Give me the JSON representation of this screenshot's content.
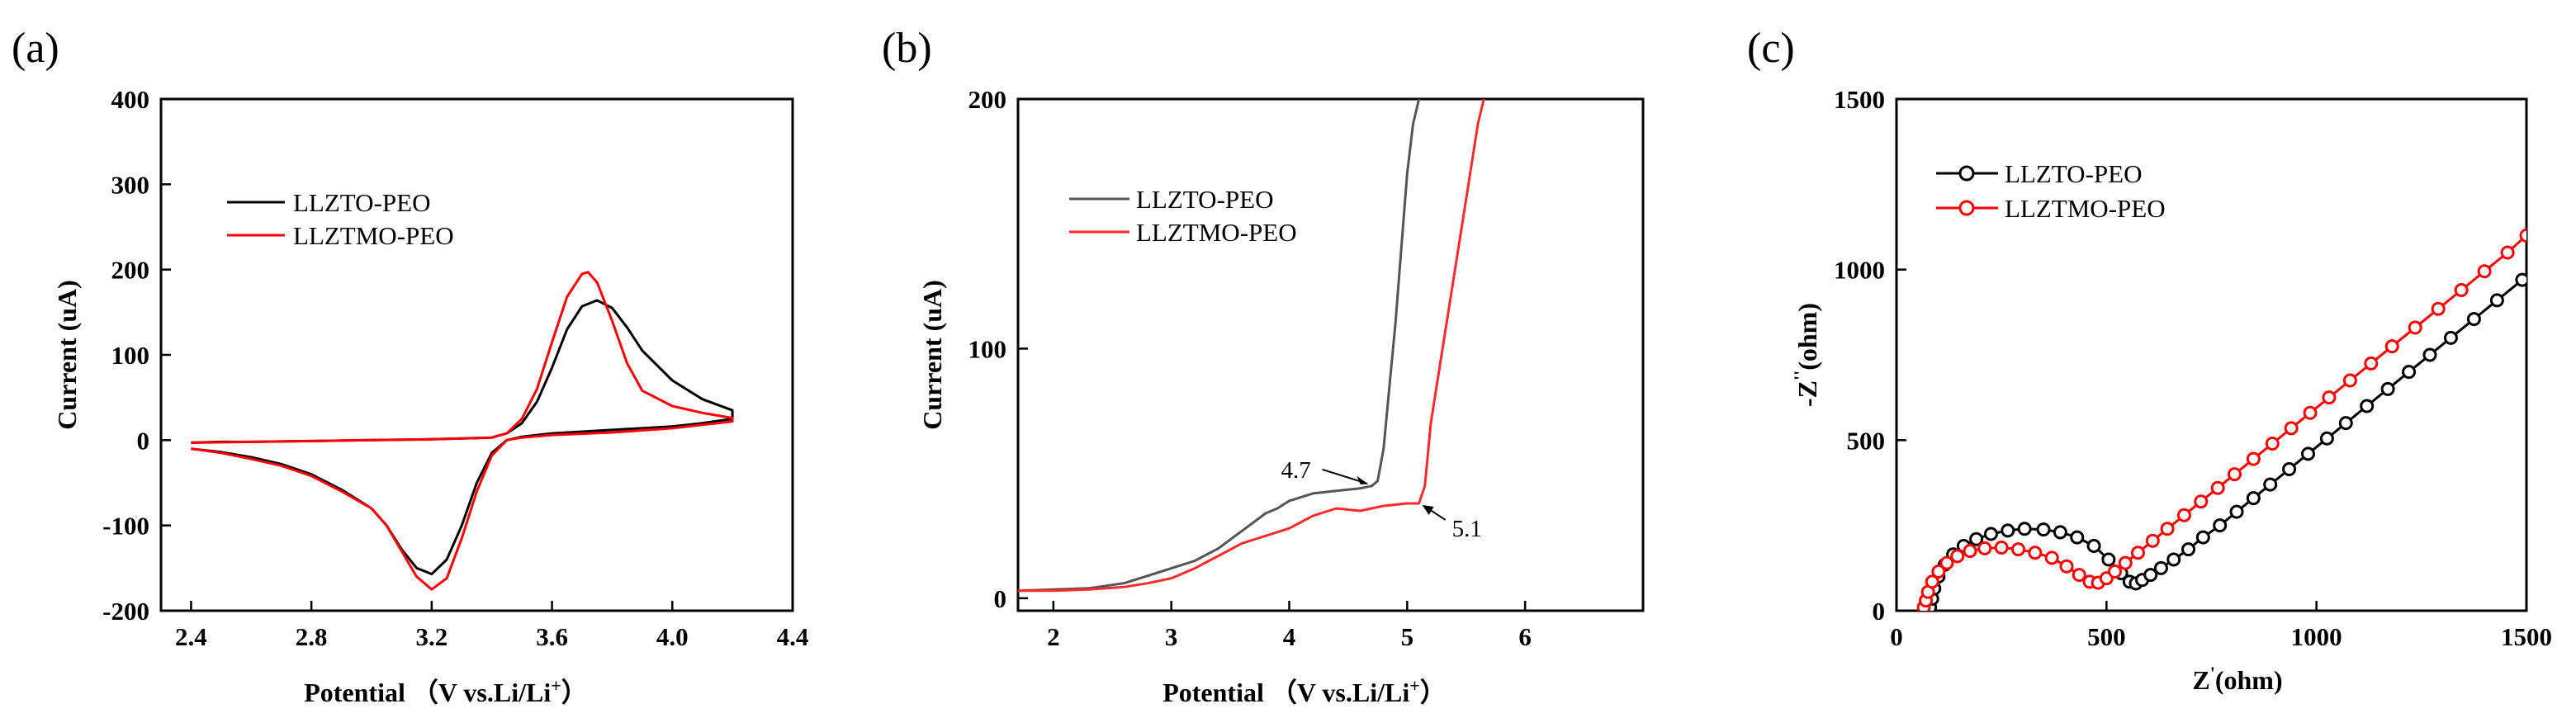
{
  "chart_data": [
    {
      "panel_label": "(a)",
      "type": "line",
      "xlabel": "Potential （V vs.Li/Li",
      "xlabel_sup": "+",
      "xlabel_end": "）",
      "ylabel": "Current (uA)",
      "xlim": [
        2.3,
        4.4
      ],
      "ylim": [
        -200,
        400
      ],
      "xticks": [
        "2.4",
        "2.8",
        "3.2",
        "3.6",
        "4.0",
        "4.4"
      ],
      "yticks": [
        "-200",
        "-100",
        "0",
        "100",
        "200",
        "300",
        "400"
      ],
      "legend": [
        "LLZTO-PEO",
        "LLZTMO-PEO"
      ],
      "series": [
        {
          "name": "LLZTO-PEO",
          "color": "#000000",
          "x": [
            2.4,
            2.5,
            2.6,
            2.8,
            3.0,
            3.2,
            3.4,
            3.45,
            3.5,
            3.55,
            3.6,
            3.65,
            3.7,
            3.75,
            3.8,
            3.85,
            3.9,
            4.0,
            4.1,
            4.2,
            4.2,
            4.1,
            4.0,
            3.8,
            3.6,
            3.5,
            3.45,
            3.4,
            3.35,
            3.3,
            3.25,
            3.2,
            3.15,
            3.1,
            3.05,
            3.0,
            2.9,
            2.8,
            2.7,
            2.6,
            2.5,
            2.4
          ],
          "y": [
            -3,
            -2,
            -2,
            -1,
            0,
            1,
            3,
            8,
            20,
            45,
            85,
            130,
            157,
            164,
            155,
            132,
            105,
            70,
            48,
            35,
            25,
            20,
            16,
            12,
            8,
            4,
            0,
            -15,
            -50,
            -100,
            -140,
            -157,
            -150,
            -128,
            -100,
            -80,
            -58,
            -40,
            -28,
            -20,
            -14,
            -10
          ]
        },
        {
          "name": "LLZTMO-PEO",
          "color": "#ff0000",
          "x": [
            2.4,
            2.6,
            2.8,
            3.0,
            3.2,
            3.4,
            3.45,
            3.5,
            3.55,
            3.6,
            3.65,
            3.7,
            3.72,
            3.75,
            3.8,
            3.85,
            3.9,
            4.0,
            4.1,
            4.2,
            4.2,
            4.1,
            4.0,
            3.8,
            3.6,
            3.5,
            3.45,
            3.4,
            3.35,
            3.3,
            3.25,
            3.2,
            3.15,
            3.1,
            3.05,
            3.0,
            2.9,
            2.8,
            2.7,
            2.6,
            2.5,
            2.4
          ],
          "y": [
            -3,
            -2,
            -1,
            0,
            1,
            3,
            8,
            25,
            60,
            115,
            168,
            195,
            197,
            185,
            140,
            90,
            58,
            40,
            32,
            26,
            22,
            18,
            14,
            9,
            6,
            3,
            0,
            -18,
            -60,
            -115,
            -162,
            -175,
            -160,
            -130,
            -100,
            -80,
            -60,
            -42,
            -30,
            -22,
            -15,
            -10
          ]
        }
      ]
    },
    {
      "panel_label": "(b)",
      "type": "line",
      "xlabel": "Potential （V vs.Li/Li",
      "xlabel_sup": "+",
      "xlabel_end": "）",
      "ylabel": "Current (uA)",
      "xlim": [
        1.7,
        7.0
      ],
      "ylim": [
        -5,
        200
      ],
      "xticks": [
        "2",
        "3",
        "4",
        "5",
        "6"
      ],
      "yticks": [
        "0",
        "100",
        "200"
      ],
      "legend": [
        "LLZTO-PEO",
        "LLZTMO-PEO"
      ],
      "annotations": [
        {
          "text": "4.7",
          "x": 4.7,
          "y": 45
        },
        {
          "text": "5.1",
          "x": 5.1,
          "y": 38
        }
      ],
      "series": [
        {
          "name": "LLZTO-PEO",
          "color": "#555555",
          "x": [
            1.7,
            2.0,
            2.3,
            2.6,
            2.8,
            3.0,
            3.2,
            3.4,
            3.6,
            3.8,
            3.9,
            4.0,
            4.2,
            4.4,
            4.6,
            4.7,
            4.75,
            4.8,
            4.85,
            4.9,
            4.95,
            5.0,
            5.05,
            5.1
          ],
          "y": [
            3,
            3.5,
            4,
            6,
            9,
            12,
            15,
            20,
            27,
            34,
            36,
            39,
            42,
            43,
            44,
            45,
            47,
            60,
            85,
            110,
            140,
            170,
            190,
            200
          ]
        },
        {
          "name": "LLZTMO-PEO",
          "color": "#ff2a2a",
          "x": [
            1.7,
            2.0,
            2.3,
            2.6,
            2.8,
            3.0,
            3.2,
            3.4,
            3.6,
            3.8,
            4.0,
            4.2,
            4.4,
            4.6,
            4.8,
            5.0,
            5.1,
            5.15,
            5.2,
            5.3,
            5.4,
            5.5,
            5.6,
            5.65
          ],
          "y": [
            3,
            3,
            3.5,
            4.5,
            6,
            8,
            12,
            17,
            22,
            25,
            28,
            33,
            36,
            35,
            37,
            38,
            38,
            45,
            70,
            100,
            130,
            160,
            190,
            200
          ]
        }
      ]
    },
    {
      "panel_label": "(c)",
      "type": "scatter",
      "xlabel": "Z",
      "xlabel_sup": "'",
      "xlabel_end": "(ohm)",
      "ylabel": "-Z",
      "ylabel_sup": "''",
      "ylabel_end": "(ohm)",
      "xlim": [
        0,
        1500
      ],
      "ylim": [
        0,
        1500
      ],
      "xticks": [
        "0",
        "500",
        "1000",
        "1500"
      ],
      "yticks": [
        "0",
        "500",
        "1000",
        "1500"
      ],
      "legend": [
        "LLZTO-PEO",
        "LLZTMO-PEO"
      ],
      "series": [
        {
          "name": "LLZTO-PEO",
          "color": "#000000",
          "x": [
            80,
            85,
            90,
            100,
            115,
            135,
            160,
            190,
            225,
            265,
            305,
            350,
            390,
            430,
            470,
            505,
            535,
            555,
            570,
            585,
            605,
            630,
            660,
            695,
            730,
            770,
            810,
            850,
            890,
            935,
            980,
            1025,
            1070,
            1120,
            1170,
            1220,
            1270,
            1320,
            1375,
            1430,
            1490
          ],
          "y": [
            10,
            35,
            65,
            100,
            135,
            165,
            190,
            210,
            225,
            235,
            240,
            238,
            230,
            215,
            190,
            150,
            110,
            85,
            80,
            90,
            105,
            125,
            150,
            180,
            215,
            250,
            290,
            330,
            370,
            415,
            460,
            505,
            550,
            600,
            650,
            700,
            750,
            800,
            855,
            910,
            970
          ]
        },
        {
          "name": "LLZTMO-PEO",
          "color": "#ff0000",
          "x": [
            65,
            70,
            75,
            85,
            100,
            120,
            145,
            175,
            210,
            250,
            290,
            330,
            370,
            405,
            435,
            460,
            480,
            500,
            520,
            545,
            575,
            610,
            645,
            685,
            725,
            765,
            805,
            850,
            895,
            940,
            985,
            1030,
            1080,
            1130,
            1180,
            1235,
            1290,
            1345,
            1400,
            1455,
            1500
          ],
          "y": [
            10,
            30,
            55,
            85,
            115,
            140,
            160,
            175,
            183,
            185,
            180,
            170,
            155,
            130,
            105,
            85,
            82,
            95,
            115,
            140,
            170,
            205,
            240,
            280,
            320,
            360,
            400,
            445,
            490,
            535,
            580,
            625,
            675,
            725,
            775,
            830,
            885,
            940,
            995,
            1050,
            1100
          ]
        }
      ]
    }
  ]
}
